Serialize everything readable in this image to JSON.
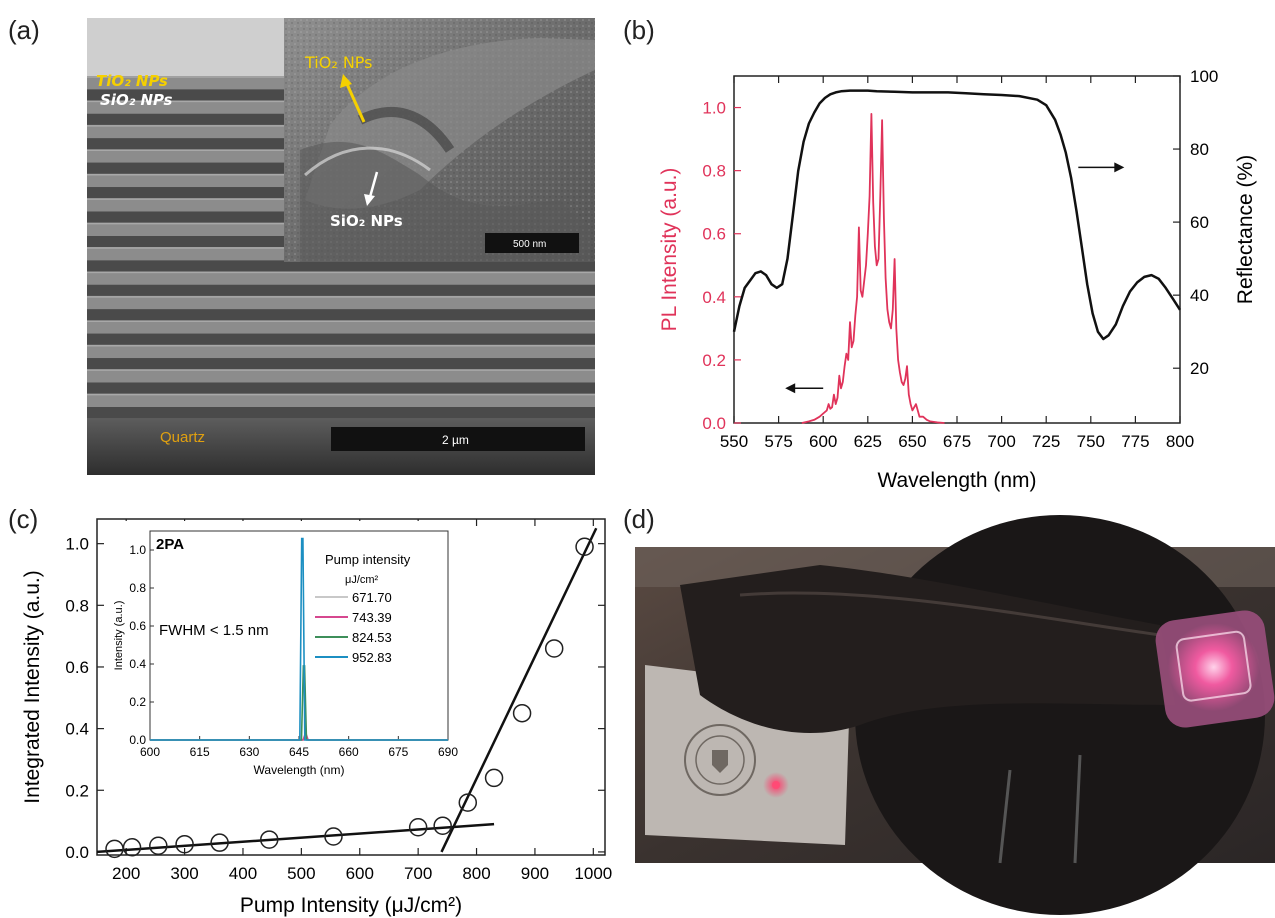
{
  "panels": {
    "a": {
      "label": "(a)",
      "tio2_label": "TiO₂ NPs",
      "sio2_label": "SiO₂ NPs",
      "inset_tio2_label": "TiO₂ NPs",
      "inset_sio2_label": "SiO₂ NPs",
      "inset_scalebar": "500 nm",
      "substrate_label": "Quartz",
      "scalebar": "2 µm",
      "colors": {
        "tio2": "#f5d000",
        "sio2": "#ffffff",
        "quartz": "#e0a010"
      }
    },
    "b": {
      "label": "(b)"
    },
    "c": {
      "label": "(c)"
    },
    "d": {
      "label": "(d)"
    }
  },
  "chart_data": [
    {
      "panel": "b",
      "type": "line",
      "xlabel": "Wavelength (nm)",
      "ylabel_left": "PL Intensity (a.u.)",
      "ylabel_right": "Reflectance (%)",
      "xlim": [
        550,
        800
      ],
      "ylim_left": [
        0,
        1.1
      ],
      "ylim_right": [
        5,
        100
      ],
      "x_ticks": [
        550,
        575,
        600,
        625,
        650,
        675,
        700,
        725,
        750,
        775,
        800
      ],
      "y_ticks_left": [
        0.0,
        0.2,
        0.4,
        0.6,
        0.8,
        1.0
      ],
      "y_ticks_right": [
        20,
        40,
        60,
        80,
        100
      ],
      "colors": {
        "pl": "#e0335a",
        "reflectance": "#111111"
      },
      "series": [
        {
          "axis": "right",
          "x": [
            550,
            553,
            556,
            559,
            562,
            565,
            568,
            571,
            574,
            577,
            580,
            583,
            586,
            589,
            592,
            595,
            598,
            601,
            604,
            607,
            610,
            615,
            620,
            625,
            630,
            640,
            650,
            660,
            670,
            680,
            690,
            700,
            710,
            720,
            725,
            730,
            733,
            736,
            739,
            742,
            745,
            748,
            751,
            754,
            757,
            760,
            764,
            768,
            772,
            776,
            780,
            784,
            788,
            792,
            796,
            800
          ],
          "y": [
            30,
            37,
            42,
            44,
            46,
            46.5,
            45.5,
            43,
            42,
            43,
            50,
            62,
            74,
            82,
            87,
            90,
            92.5,
            94,
            95,
            95.5,
            95.8,
            96,
            96,
            96,
            95.8,
            95.7,
            95.5,
            95.5,
            95.5,
            95.3,
            95,
            94.8,
            94.5,
            93.5,
            92,
            88,
            84,
            79,
            72,
            63,
            53,
            43,
            35,
            30,
            28,
            29,
            32,
            37,
            41,
            43.5,
            45,
            45.5,
            44.5,
            42,
            39,
            36
          ]
        },
        {
          "axis": "left",
          "x": [
            588,
            592,
            595,
            598,
            600,
            602,
            603,
            604,
            605,
            606,
            607,
            608,
            609,
            610,
            611,
            612,
            613,
            614,
            615,
            616,
            617,
            618,
            619,
            620,
            621,
            622,
            623,
            624,
            625,
            626,
            627,
            628,
            629,
            630,
            631,
            632,
            633,
            634,
            635,
            636,
            637,
            638,
            639,
            640,
            641,
            642,
            643,
            644,
            645,
            646,
            647,
            648,
            649,
            650,
            652,
            654,
            656,
            658,
            660,
            664,
            668
          ],
          "y": [
            0,
            0.005,
            0.01,
            0.02,
            0.03,
            0.04,
            0.06,
            0.045,
            0.05,
            0.09,
            0.06,
            0.08,
            0.15,
            0.11,
            0.13,
            0.18,
            0.22,
            0.2,
            0.32,
            0.24,
            0.26,
            0.34,
            0.4,
            0.62,
            0.42,
            0.4,
            0.45,
            0.5,
            0.6,
            0.72,
            0.98,
            0.7,
            0.56,
            0.5,
            0.52,
            0.72,
            0.96,
            0.65,
            0.46,
            0.36,
            0.32,
            0.3,
            0.36,
            0.52,
            0.3,
            0.2,
            0.16,
            0.13,
            0.12,
            0.14,
            0.18,
            0.09,
            0.06,
            0.04,
            0.06,
            0.02,
            0.02,
            0.01,
            0.005,
            0.002,
            0
          ]
        }
      ],
      "annotations": [
        {
          "text": "→",
          "x": 743,
          "y_right": 75,
          "direction": "right"
        },
        {
          "text": "←",
          "x": 600,
          "y_left": 0.11,
          "direction": "left"
        }
      ]
    },
    {
      "panel": "c",
      "type": "scatter",
      "xlabel": "Pump Intensity (μJ/cm²)",
      "ylabel": "Integrated Intensity (a.u.)",
      "xlim": [
        150,
        1020
      ],
      "ylim": [
        -0.01,
        1.08
      ],
      "x_ticks": [
        200,
        300,
        400,
        500,
        600,
        700,
        800,
        900,
        1000
      ],
      "y_ticks": [
        0.0,
        0.2,
        0.4,
        0.6,
        0.8,
        1.0
      ],
      "points": {
        "x": [
          180,
          210,
          255,
          300,
          360,
          445,
          555,
          700,
          742,
          785,
          830,
          878,
          933,
          985
        ],
        "y": [
          0.01,
          0.015,
          0.02,
          0.025,
          0.03,
          0.04,
          0.05,
          0.08,
          0.085,
          0.16,
          0.24,
          0.45,
          0.66,
          0.99
        ]
      },
      "fit_lines": [
        {
          "x": [
            150,
            830
          ],
          "y": [
            0.0,
            0.09
          ]
        },
        {
          "x": [
            740,
            1005
          ],
          "y": [
            0.0,
            1.05
          ]
        }
      ]
    },
    {
      "panel": "c-inset",
      "type": "line",
      "title": "2PA",
      "annotation": "FWHM < 1.5 nm",
      "legend_title": "Pump intensity",
      "legend_unit": "μJ/cm²",
      "xlabel": "Wavelength (nm)",
      "ylabel": "Intensity (a.u.)",
      "xlim": [
        600,
        690
      ],
      "ylim": [
        0,
        1.1
      ],
      "x_ticks": [
        600,
        615,
        630,
        645,
        660,
        675,
        690
      ],
      "y_ticks": [
        0.0,
        0.2,
        0.4,
        0.6,
        0.8,
        1.0
      ],
      "series": [
        {
          "name": "671.70",
          "color": "#c8c8c8",
          "peak_x": 647,
          "peak_y": 0.01
        },
        {
          "name": "743.39",
          "color": "#d6478f",
          "peak_x": 647,
          "peak_y": 0.03
        },
        {
          "name": "824.53",
          "color": "#3e8f5a",
          "peak_x": 646.5,
          "peak_y": 0.39
        },
        {
          "name": "952.83",
          "color": "#1c8fc2",
          "peak_x": 646,
          "peak_y": 1.06
        }
      ]
    }
  ]
}
